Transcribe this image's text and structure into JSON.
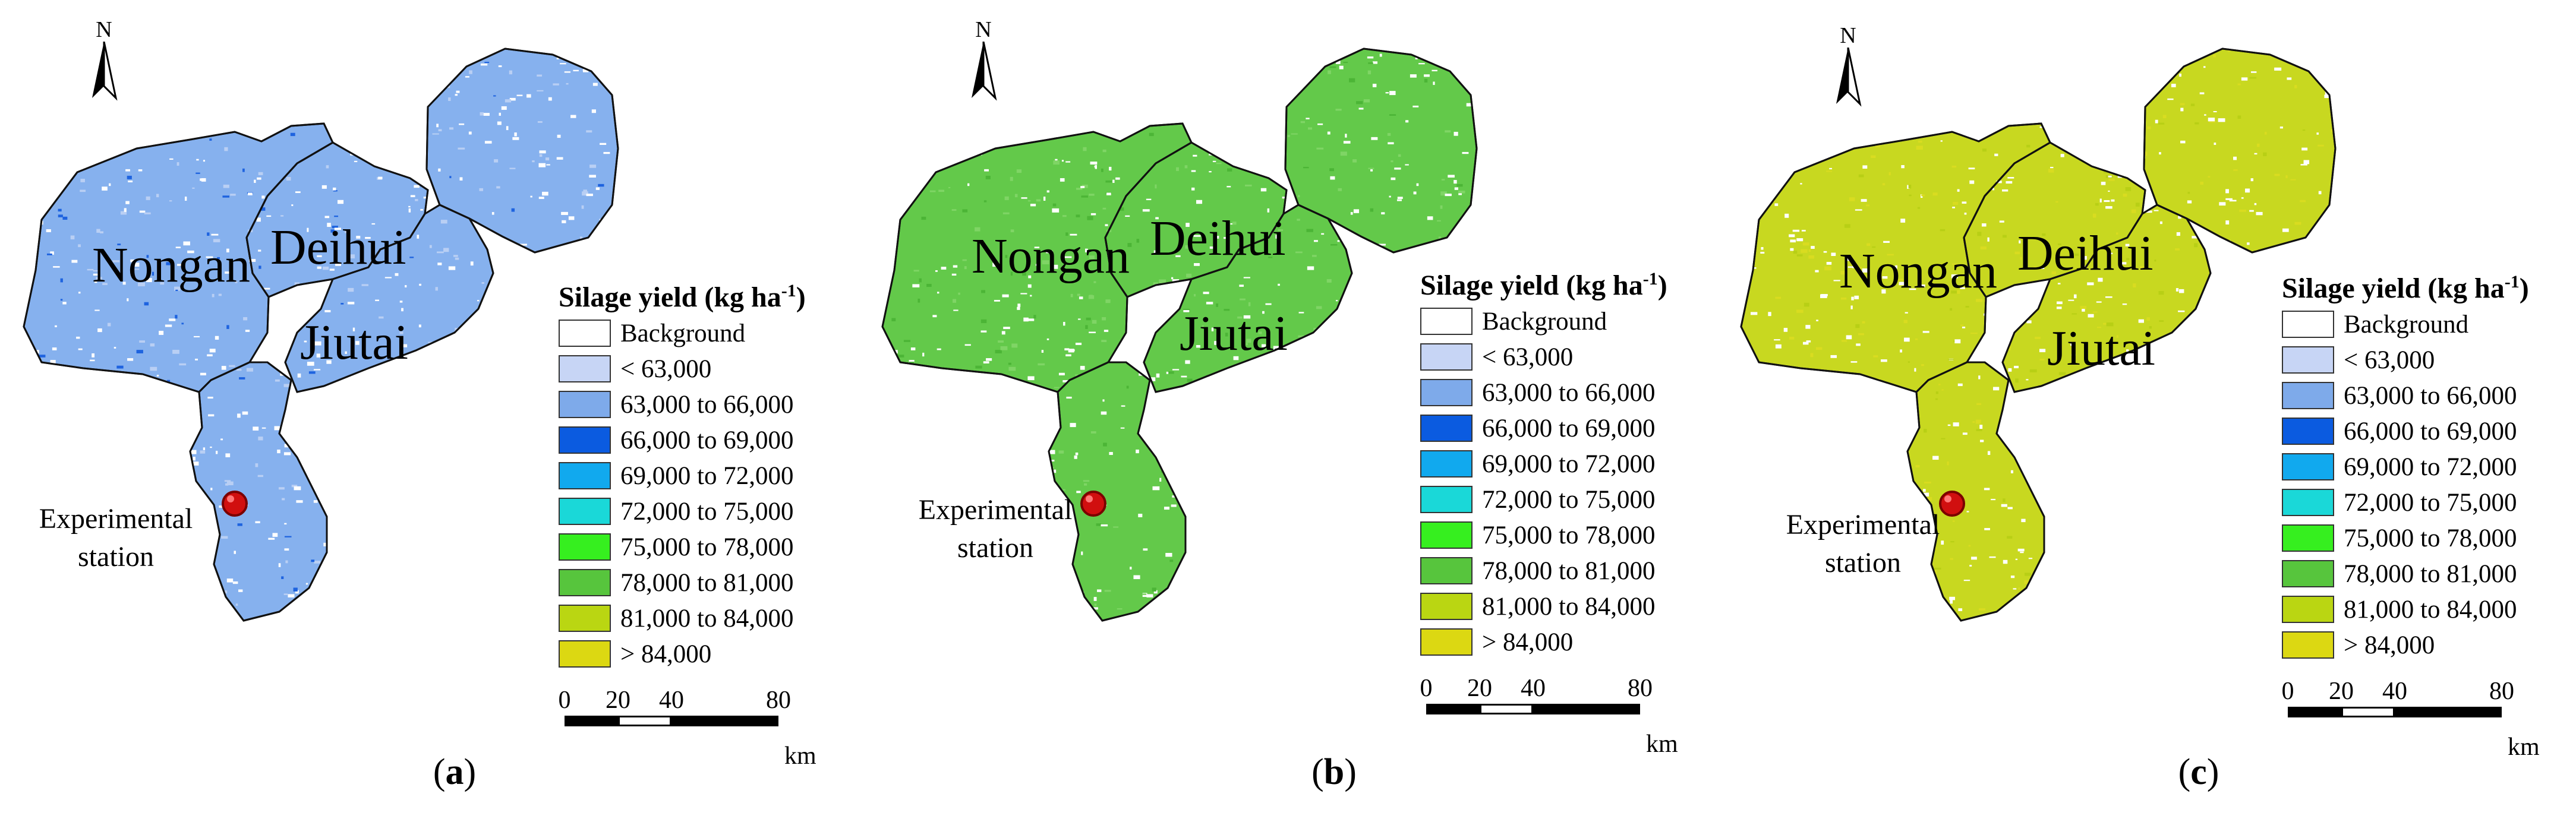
{
  "north_label": "N",
  "legend": {
    "title_main": "Silage yield (kg ha",
    "title_sup": "-1",
    "title_close": ")",
    "items": [
      {
        "label": "Background",
        "color": "#ffffff"
      },
      {
        "label": "< 63,000",
        "color": "#c7d5f5"
      },
      {
        "label": "63,000 to 66,000",
        "color": "#7eaaea"
      },
      {
        "label": "66,000 to 69,000",
        "color": "#0b5be0"
      },
      {
        "label": "69,000 to 72,000",
        "color": "#11a9ee"
      },
      {
        "label": "72,000 to 75,000",
        "color": "#1ad8d8"
      },
      {
        "label": "75,000 to 78,000",
        "color": "#36ef1f"
      },
      {
        "label": "78,000 to 81,000",
        "color": "#57c53d"
      },
      {
        "label": "81,000 to 84,000",
        "color": "#bad612"
      },
      {
        "label": "> 84,000",
        "color": "#dcd812"
      }
    ]
  },
  "scale": {
    "ticks": [
      "0",
      "20",
      "40",
      "80"
    ],
    "unit": "km"
  },
  "regions": [
    "Nongan",
    "Deihui",
    "Jiutai"
  ],
  "station_label": [
    "Experimental",
    "station"
  ],
  "panels": [
    {
      "caption_open": "(",
      "caption_letter": "a",
      "caption_close": ")",
      "dominant_class": "63,000 to 66,000",
      "fill": "#86b1ee",
      "speck": "#b9cff4",
      "dark": "#1e63df"
    },
    {
      "caption_open": "(",
      "caption_letter": "b",
      "caption_close": ")",
      "dominant_class": "78,000 to 81,000",
      "fill": "#63c94a",
      "speck": "#7fd565",
      "dark": "#4cb536"
    },
    {
      "caption_open": "(",
      "caption_letter": "c",
      "caption_close": ")",
      "dominant_class": "81,000 to 84,000",
      "fill": "#c8d820",
      "speck": "#d9dc20",
      "dark": "#b8cf15"
    }
  ]
}
